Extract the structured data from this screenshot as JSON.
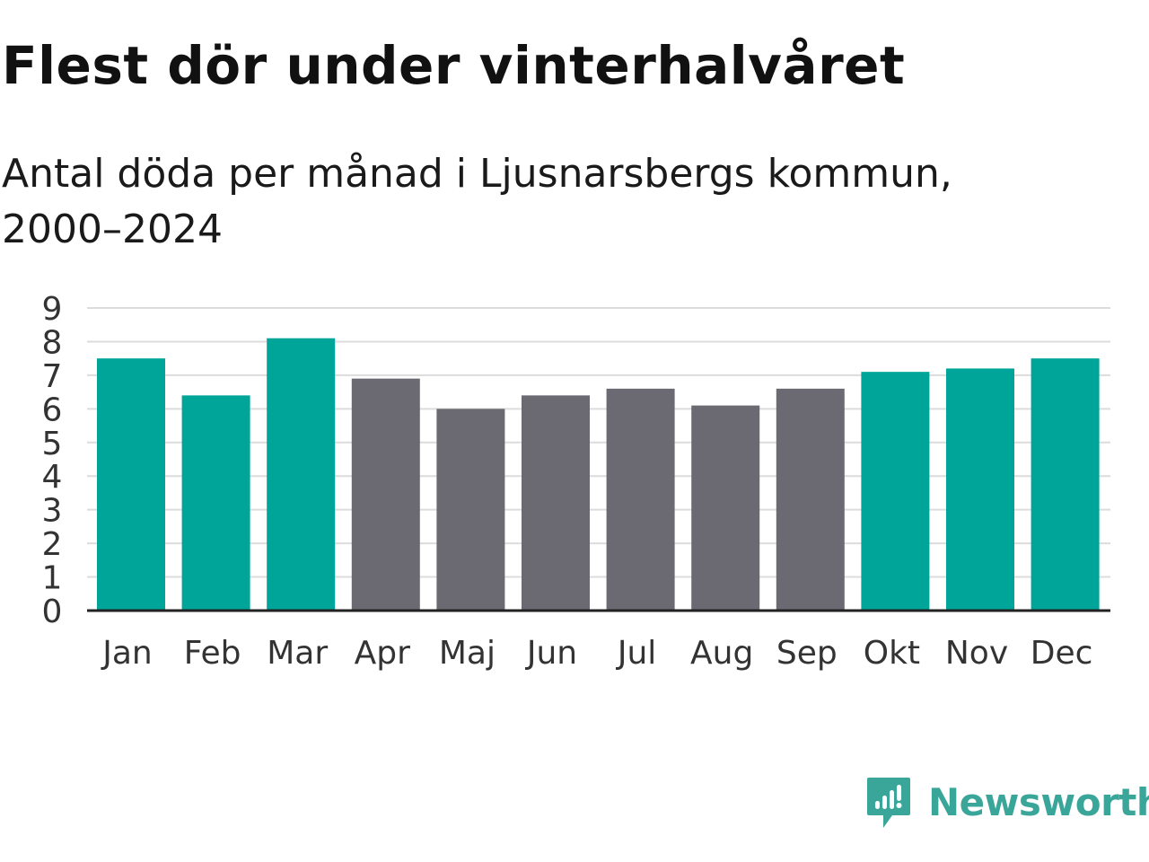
{
  "header": {
    "title": "Flest dör under vinterhalvåret",
    "subtitle_line1": "Antal döda per månad i Ljusnarsbergs kommun,",
    "subtitle_line2": "2000–2024"
  },
  "brand": {
    "name": "Newsworthy",
    "color": "#3aa699"
  },
  "colors": {
    "highlight": "#00a59a",
    "normal": "#6b6a72",
    "grid": "#dcdcdc",
    "axis": "#222222"
  },
  "chart_data": {
    "type": "bar",
    "title": "Flest dör under vinterhalvåret",
    "subtitle": "Antal döda per månad i Ljusnarsbergs kommun, 2000–2024",
    "xlabel": "",
    "ylabel": "",
    "categories": [
      "Jan",
      "Feb",
      "Mar",
      "Apr",
      "Maj",
      "Jun",
      "Jul",
      "Aug",
      "Sep",
      "Okt",
      "Nov",
      "Dec"
    ],
    "values": [
      7.5,
      6.4,
      8.1,
      6.9,
      6.0,
      6.4,
      6.6,
      6.1,
      6.6,
      7.1,
      7.2,
      7.5
    ],
    "highlight": [
      true,
      true,
      true,
      false,
      false,
      false,
      false,
      false,
      false,
      true,
      true,
      true
    ],
    "ylim": [
      0,
      9
    ],
    "yticks": [
      "0",
      "1",
      "2",
      "3",
      "4",
      "5",
      "6",
      "7",
      "8",
      "9"
    ],
    "grid": true
  }
}
